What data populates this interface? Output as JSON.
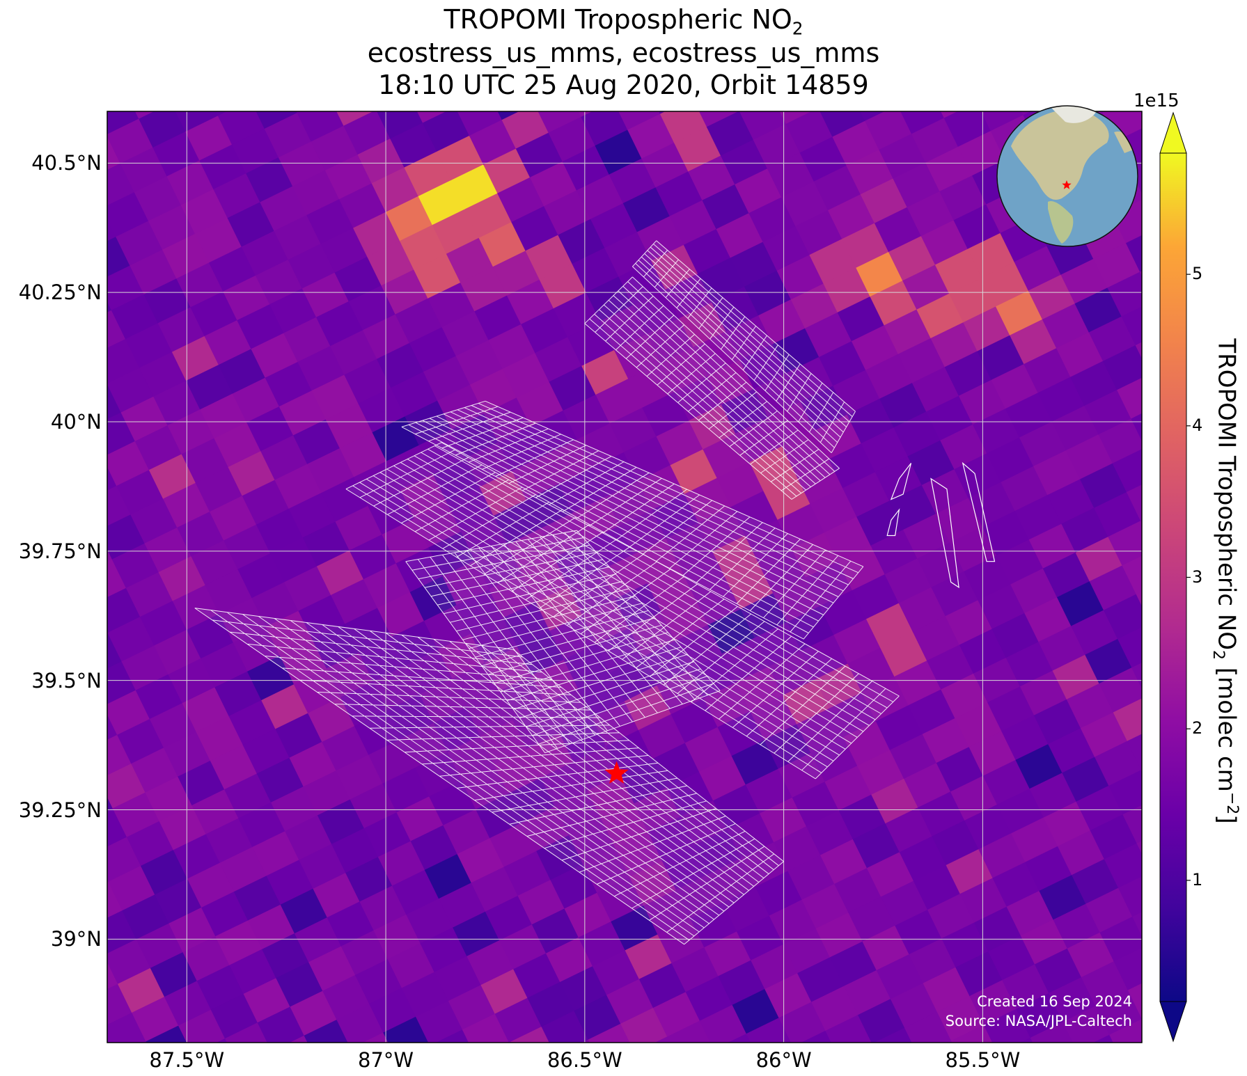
{
  "title": {
    "line1_main": "TROPOMI Tropospheric NO",
    "line1_sub": "2",
    "line2": "ecostress_us_mms, ecostress_us_mms",
    "line3": "18:10 UTC 25 Aug 2020, Orbit 14859"
  },
  "credits": {
    "created": "Created 16 Sep 2024",
    "source": "Source: NASA/JPL-Caltech"
  },
  "map": {
    "projection": "lat/lon",
    "lon_range": [
      -87.7,
      -85.1
    ],
    "lat_range": [
      38.8,
      40.6
    ],
    "x_ticks": [
      {
        "lon": -87.5,
        "label": "87.5°W"
      },
      {
        "lon": -87.0,
        "label": "87°W"
      },
      {
        "lon": -86.5,
        "label": "86.5°W"
      },
      {
        "lon": -86.0,
        "label": "86°W"
      },
      {
        "lon": -85.5,
        "label": "85.5°W"
      }
    ],
    "y_ticks": [
      {
        "lat": 40.5,
        "label": "40.5°N"
      },
      {
        "lat": 40.25,
        "label": "40.25°N"
      },
      {
        "lat": 40.0,
        "label": "40°N"
      },
      {
        "lat": 39.75,
        "label": "39.75°N"
      },
      {
        "lat": 39.5,
        "label": "39.5°N"
      },
      {
        "lat": 39.25,
        "label": "39.25°N"
      },
      {
        "lat": 39.0,
        "label": "39°N"
      }
    ],
    "grid": true,
    "marker": {
      "lon": -86.42,
      "lat": 39.32,
      "symbol": "star",
      "color": "#ff0000"
    },
    "hotspots": [
      {
        "lon": -86.82,
        "lat": 40.44,
        "value": 5.6
      },
      {
        "lon": -86.78,
        "lat": 40.46,
        "value": 5.2
      },
      {
        "lon": -86.95,
        "lat": 40.38,
        "value": 4.2
      },
      {
        "lon": -86.72,
        "lat": 40.33,
        "value": 3.8
      },
      {
        "lon": -86.9,
        "lat": 40.3,
        "value": 3.6
      },
      {
        "lon": -85.5,
        "lat": 40.28,
        "value": 5.6
      },
      {
        "lon": -85.78,
        "lat": 40.3,
        "value": 4.6
      },
      {
        "lon": -85.6,
        "lat": 40.22,
        "value": 3.6
      },
      {
        "lon": -85.4,
        "lat": 40.21,
        "value": 4.2
      },
      {
        "lon": -85.7,
        "lat": 40.25,
        "value": 3.4
      },
      {
        "lon": -86.6,
        "lat": 40.28,
        "value": 3.0
      },
      {
        "lon": -86.25,
        "lat": 40.55,
        "value": 3.0
      },
      {
        "lon": -86.4,
        "lat": 40.08,
        "value": 3.2
      },
      {
        "lon": -86.21,
        "lat": 39.91,
        "value": 3.4
      },
      {
        "lon": -86.0,
        "lat": 39.89,
        "value": 3.2
      },
      {
        "lon": -86.1,
        "lat": 39.7,
        "value": 2.8
      },
      {
        "lon": -85.72,
        "lat": 39.58,
        "value": 3.0
      },
      {
        "lon": -87.5,
        "lat": 39.9,
        "value": 2.8
      },
      {
        "lon": -85.9,
        "lat": 39.46,
        "value": 2.8
      }
    ],
    "scene_grids": [
      {
        "name": "grid-a",
        "c1": [
          -87.48,
          39.64
        ],
        "c2": [
          -86.68,
          39.56
        ],
        "c3": [
          -86.0,
          39.15
        ],
        "c4": [
          -86.25,
          38.99
        ],
        "cols": 28,
        "rows": 20
      },
      {
        "name": "grid-b",
        "c1": [
          -87.1,
          39.87
        ],
        "c2": [
          -86.86,
          39.96
        ],
        "c3": [
          -85.71,
          39.47
        ],
        "c4": [
          -85.92,
          39.31
        ],
        "cols": 34,
        "rows": 14
      },
      {
        "name": "grid-c",
        "c1": [
          -86.96,
          39.99
        ],
        "c2": [
          -86.75,
          40.04
        ],
        "c3": [
          -85.8,
          39.72
        ],
        "c4": [
          -85.95,
          39.58
        ],
        "cols": 30,
        "rows": 12
      },
      {
        "name": "grid-d",
        "c1": [
          -86.5,
          40.19
        ],
        "c2": [
          -86.38,
          40.28
        ],
        "c3": [
          -85.86,
          39.91
        ],
        "c4": [
          -85.98,
          39.85
        ],
        "cols": 20,
        "rows": 10
      },
      {
        "name": "grid-e",
        "c1": [
          -86.38,
          40.3
        ],
        "c2": [
          -86.32,
          40.35
        ],
        "c3": [
          -85.82,
          40.02
        ],
        "c4": [
          -85.88,
          39.94
        ],
        "cols": 18,
        "rows": 8
      },
      {
        "name": "grid-f",
        "c1": [
          -86.95,
          39.73
        ],
        "c2": [
          -86.52,
          39.79
        ],
        "c3": [
          -86.16,
          39.48
        ],
        "c4": [
          -86.6,
          39.36
        ],
        "cols": 22,
        "rows": 14
      }
    ],
    "small_strips": [
      {
        "c1": [
          -85.71,
          39.89
        ],
        "c2": [
          -85.68,
          39.92
        ],
        "c3": [
          -85.7,
          39.86
        ],
        "c4": [
          -85.73,
          39.85
        ]
      },
      {
        "c1": [
          -85.73,
          39.81
        ],
        "c2": [
          -85.71,
          39.83
        ],
        "c3": [
          -85.72,
          39.78
        ],
        "c4": [
          -85.74,
          39.78
        ]
      },
      {
        "c1": [
          -85.63,
          39.89
        ],
        "c2": [
          -85.59,
          39.87
        ],
        "c3": [
          -85.56,
          39.68
        ],
        "c4": [
          -85.58,
          39.69
        ]
      },
      {
        "c1": [
          -85.55,
          39.92
        ],
        "c2": [
          -85.52,
          39.9
        ],
        "c3": [
          -85.47,
          39.73
        ],
        "c4": [
          -85.49,
          39.73
        ]
      }
    ]
  },
  "colorbar": {
    "label_main": "TROPOMI Tropospheric NO",
    "label_sub": "2",
    "label_units": " [molec cm",
    "label_sup": "−2",
    "label_end": "]",
    "exponent_label": "1e15",
    "range": [
      0.2,
      5.8
    ],
    "extend": "both",
    "colormap": "plasma",
    "ticks": [
      {
        "value": 1,
        "label": "1"
      },
      {
        "value": 2,
        "label": "2"
      },
      {
        "value": 3,
        "label": "3"
      },
      {
        "value": 4,
        "label": "4"
      },
      {
        "value": 5,
        "label": "5"
      }
    ]
  },
  "inset_globe": {
    "marker_color": "#ff0000",
    "ocean": "#6fa3c7",
    "land": "#c9c49a"
  }
}
